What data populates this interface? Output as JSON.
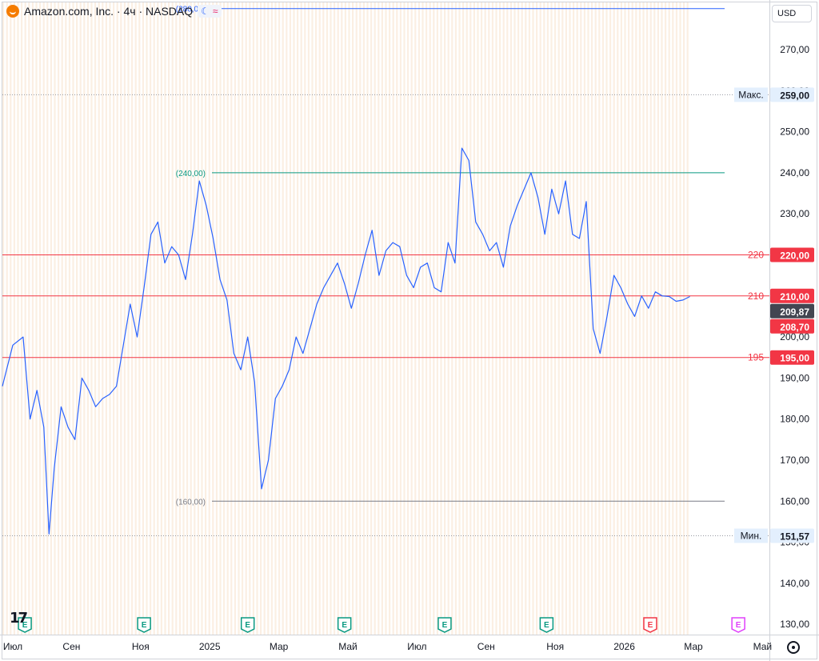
{
  "header": {
    "title": "Amazon.com, Inc. · 4ч · NASDAQ",
    "currency": "USD",
    "moon_icon": "moon-icon",
    "approx_icon": "approx-icon"
  },
  "colors": {
    "series": "#2962ff",
    "red": "#f23645",
    "green": "#089981",
    "grey": "#787b86",
    "band": "#fbefe3"
  },
  "chart_data": {
    "type": "line",
    "y_axis": {
      "min": 127.5,
      "max": 281.5,
      "ticks": [
        130,
        140,
        150,
        160,
        170,
        180,
        190,
        200,
        210,
        220,
        230,
        240,
        250,
        260,
        270
      ],
      "tick_labels": [
        "130,00",
        "140,00",
        "150,00",
        "160,00",
        "170,00",
        "180,00",
        "190,00",
        "200,00",
        "210,00",
        "220,00",
        "230,00",
        "240,00",
        "250,00",
        "260,00",
        "270,00"
      ]
    },
    "x_axis": {
      "labels": [
        "Июл",
        "Сен",
        "Ноя",
        "2025",
        "Мар",
        "Май",
        "Июл",
        "Сен",
        "Ноя",
        "2026",
        "Мар",
        "Май"
      ],
      "positions": [
        0,
        2,
        4,
        6,
        8,
        10,
        12,
        14,
        16,
        18,
        20,
        22
      ],
      "range": [
        0,
        22.2
      ]
    },
    "series": [
      {
        "x": [
          0,
          0.3,
          0.6,
          0.8,
          1.0,
          1.2,
          1.35,
          1.5,
          1.7,
          1.9,
          2.1,
          2.3,
          2.5,
          2.7,
          2.9,
          3.1,
          3.3,
          3.5,
          3.7,
          3.9,
          4.1,
          4.3,
          4.5,
          4.7,
          4.9,
          5.1,
          5.3,
          5.5,
          5.7,
          5.9,
          6.1,
          6.3,
          6.5,
          6.7,
          6.9,
          7.1,
          7.3,
          7.5,
          7.7,
          7.9,
          8.1,
          8.3,
          8.5,
          8.7,
          8.9,
          9.1,
          9.3,
          9.5,
          9.7,
          9.9,
          10.1,
          10.3,
          10.5,
          10.7,
          10.9,
          11.1,
          11.3,
          11.5,
          11.7,
          11.9,
          12.1,
          12.3,
          12.5,
          12.7,
          12.9,
          13.1,
          13.3,
          13.5,
          13.7,
          13.9,
          14.1,
          14.3,
          14.5,
          14.7,
          14.9,
          15.1,
          15.3,
          15.5,
          15.7,
          15.9,
          16.1,
          16.3,
          16.5,
          16.7,
          16.9,
          17.1,
          17.3,
          17.5,
          17.7,
          17.9,
          18.1,
          18.3,
          18.5,
          18.7,
          18.9,
          19.1,
          19.3,
          19.5,
          19.7,
          19.9
        ],
        "values": [
          188,
          198,
          200,
          180,
          187,
          178,
          152,
          168,
          183,
          178,
          175,
          190,
          187,
          183,
          185,
          186,
          188,
          198,
          208,
          200,
          212,
          225,
          228,
          218,
          222,
          220,
          214,
          225,
          238,
          232,
          224,
          214,
          209,
          196,
          192,
          200,
          189,
          163,
          170,
          185,
          188,
          192,
          200,
          196,
          202,
          208,
          212,
          215,
          218,
          213,
          207,
          213,
          220,
          226,
          215,
          221,
          223,
          222,
          215,
          212,
          217,
          218,
          212,
          211,
          223,
          218,
          246,
          243,
          228,
          225,
          221,
          223,
          217,
          227,
          232,
          236,
          240,
          234,
          225,
          236,
          230,
          238,
          225,
          224,
          233,
          202,
          196,
          205,
          215,
          212,
          208,
          205,
          210,
          207,
          211,
          210,
          209.87,
          208.7,
          209,
          209.87
        ]
      }
    ],
    "horizontal_lines": [
      {
        "label": "(240,00)",
        "value": 240,
        "color": "#089981"
      },
      {
        "label": "(160,00)",
        "value": 160,
        "color": "#787b86"
      },
      {
        "label": "(280,00)",
        "value": 280,
        "color": "#2962ff"
      }
    ],
    "red_levels": [
      {
        "label": "220",
        "value": 220,
        "tag": "220,00"
      },
      {
        "label": "210",
        "value": 210,
        "tag": "210,00"
      },
      {
        "label": "195",
        "value": 195,
        "tag": "195,00"
      }
    ],
    "max": {
      "label": "Макс.",
      "value": 259,
      "tag": "259,00"
    },
    "min": {
      "label": "Мин.",
      "value": 151.57,
      "tag": "151,57"
    },
    "price_tags": [
      {
        "value": 209.87,
        "tag": "209,87",
        "color": "#434651"
      },
      {
        "value": 208.7,
        "tag": "208,70",
        "color": "#f23645"
      }
    ],
    "events": [
      {
        "x": 0.65,
        "label": "E",
        "color": "#089981"
      },
      {
        "x": 4.1,
        "label": "E",
        "color": "#089981"
      },
      {
        "x": 7.1,
        "label": "E",
        "color": "#089981"
      },
      {
        "x": 9.9,
        "label": "E",
        "color": "#089981"
      },
      {
        "x": 12.8,
        "label": "E",
        "color": "#089981"
      },
      {
        "x": 15.75,
        "label": "E",
        "color": "#089981"
      },
      {
        "x": 18.75,
        "label": "E",
        "color": "#f23645"
      },
      {
        "x": 21.3,
        "label": "E",
        "color": "#e040fb"
      }
    ]
  }
}
